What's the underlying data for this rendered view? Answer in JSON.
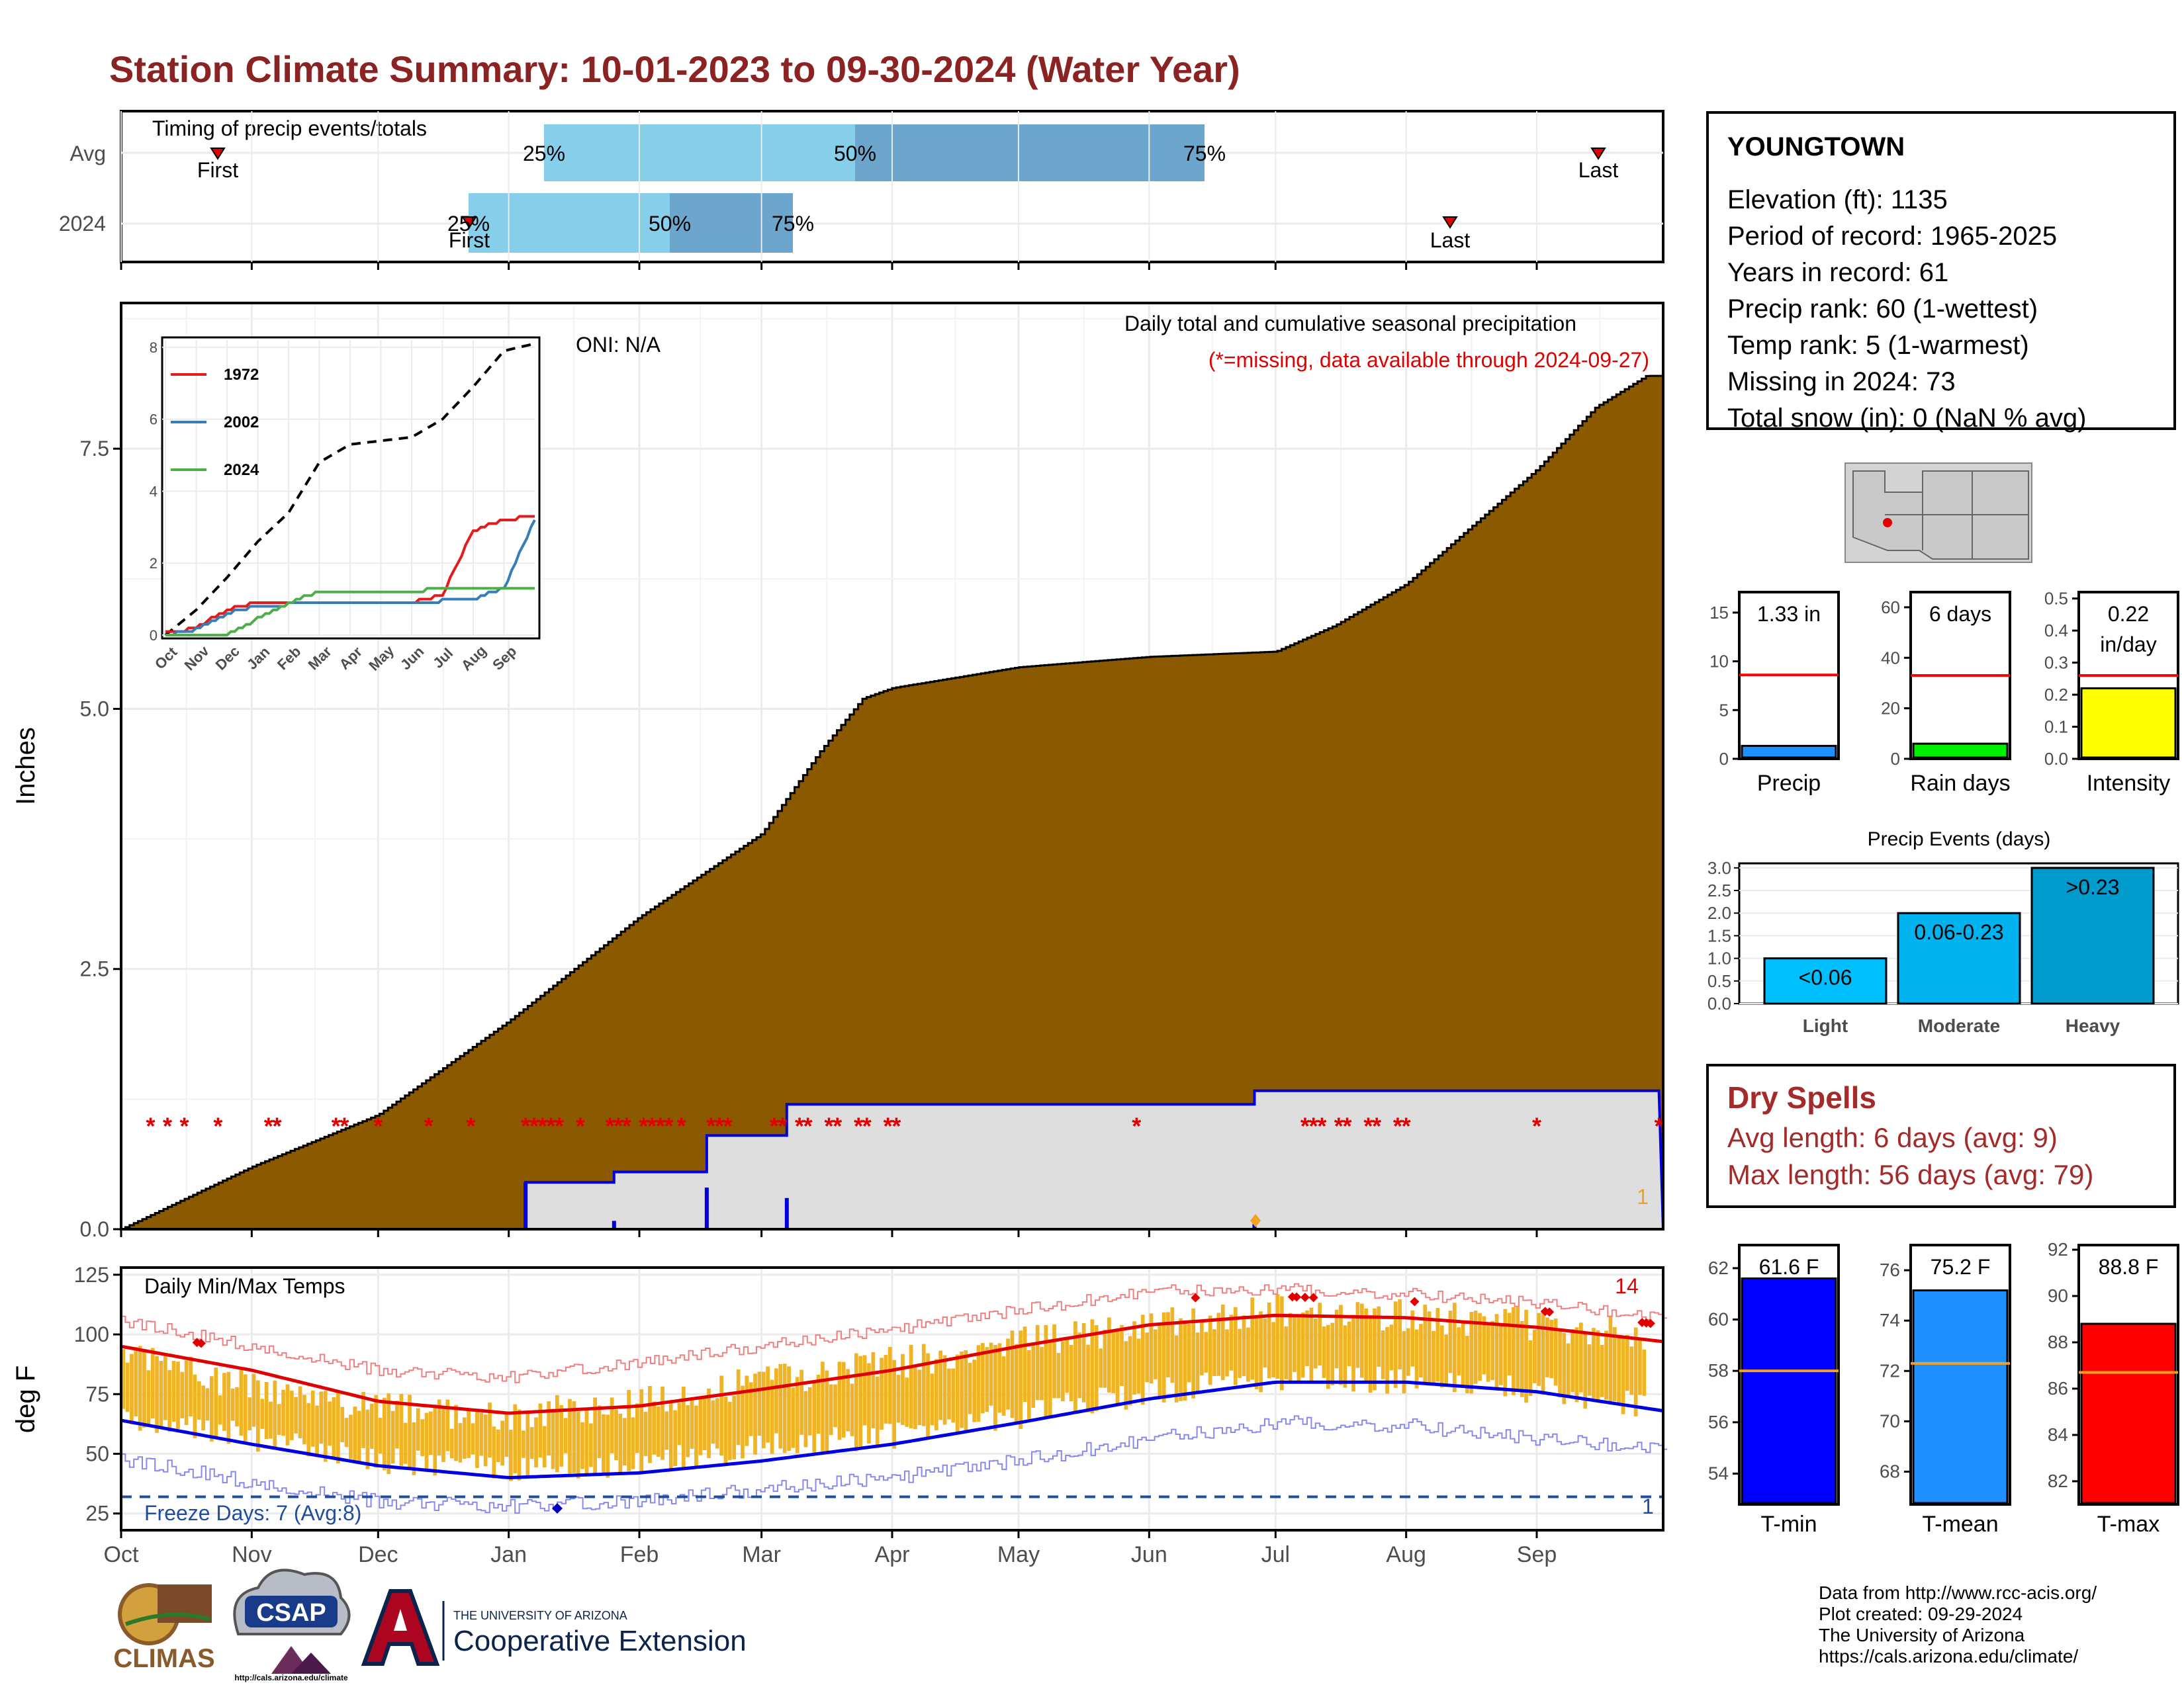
{
  "title": "Station Climate Summary: 10-01-2023 to 09-30-2024 (Water Year)",
  "timing": {
    "label": "Timing of precip events/totals",
    "rows": [
      "Avg",
      "2024"
    ],
    "avg": {
      "first_label": "First",
      "last_label": "Last",
      "p25": "25%",
      "p50": "50%",
      "p75": "75%"
    },
    "y2024": {
      "first_label": "First",
      "last_label": "Last",
      "p25": "25%",
      "p50": "50%",
      "p75": "75%"
    }
  },
  "station": {
    "name": "YOUNGTOWN",
    "lines": [
      "Elevation (ft): 1135",
      "Period of record: 1965-2025",
      "Years in record: 61",
      "Precip rank: 60 (1-wettest)",
      "Temp rank: 5 (1-warmest)",
      "Missing in 2024: 73",
      "Total snow (in): 0 (NaN % avg)"
    ]
  },
  "main_plot": {
    "ylabel": "Inches",
    "oni": "ONI: N/A",
    "caption": "Daily total and cumulative seasonal precipitation",
    "missing_note": "(*=missing, data available through 2024-09-27)",
    "corner_count": "1",
    "y_ticks": [
      "0.0",
      "2.5",
      "5.0",
      "7.5"
    ],
    "month_ticks": [
      "Oct",
      "Nov",
      "Dec",
      "Jan",
      "Feb",
      "Mar",
      "Apr",
      "May",
      "Jun",
      "Jul",
      "Aug",
      "Sep"
    ]
  },
  "inset": {
    "y_ticks": [
      "0",
      "2",
      "4",
      "6",
      "8"
    ],
    "x_ticks": [
      "Oct",
      "Nov",
      "Dec",
      "Jan",
      "Feb",
      "Mar",
      "Apr",
      "May",
      "Jun",
      "Jul",
      "Aug",
      "Sep"
    ],
    "legend": [
      "1972",
      "2002",
      "2024"
    ]
  },
  "temp_plot": {
    "ylabel": "deg F",
    "label": "Daily Min/Max Temps",
    "freeze": "Freeze Days: 7 (Avg:8)",
    "hot_count": "14",
    "cold_count": "1",
    "y_ticks": [
      "25",
      "50",
      "75",
      "100",
      "125"
    ]
  },
  "mini_bars": {
    "precip": {
      "label": "Precip",
      "value_text": "1.33 in",
      "ticks": [
        "0",
        "5",
        "10",
        "15"
      ]
    },
    "rain_days": {
      "label": "Rain days",
      "value_text": "6 days",
      "ticks": [
        "0",
        "20",
        "40",
        "60"
      ]
    },
    "intensity": {
      "label": "Intensity",
      "value_text_1": "0.22",
      "value_text_2": "in/day",
      "ticks": [
        "0.0",
        "0.1",
        "0.2",
        "0.3",
        "0.4",
        "0.5"
      ]
    }
  },
  "events": {
    "title": "Precip Events (days)",
    "ticks": [
      "0.0",
      "0.5",
      "1.0",
      "1.5",
      "2.0",
      "2.5",
      "3.0"
    ],
    "bars": [
      {
        "cat": "Light",
        "label": "<0.06",
        "value": 1
      },
      {
        "cat": "Moderate",
        "label": "0.06-0.23",
        "value": 2
      },
      {
        "cat": "Heavy",
        "label": ">0.23",
        "value": 3
      }
    ]
  },
  "dry_spells": {
    "title": "Dry Spells",
    "avg": "Avg length: 6 days (avg: 9)",
    "max": "Max length: 56 days (avg: 79)"
  },
  "temp_bars": {
    "tmin": {
      "label": "T-min",
      "value_text": "61.6 F",
      "ticks": [
        "54",
        "56",
        "58",
        "60",
        "62"
      ]
    },
    "tmean": {
      "label": "T-mean",
      "value_text": "75.2 F",
      "ticks": [
        "68",
        "70",
        "72",
        "74",
        "76"
      ]
    },
    "tmax": {
      "label": "T-max",
      "value_text": "88.8 F",
      "ticks": [
        "82",
        "84",
        "86",
        "88",
        "90",
        "92"
      ]
    }
  },
  "logos": {
    "climas": "CLIMAS",
    "csap": "CSAP",
    "csap_url": "http://cals.arizona.edu/climate",
    "ua_small": "THE UNIVERSITY OF ARIZONA",
    "ua_big": "Cooperative Extension"
  },
  "credits": [
    "Data from http://www.rcc-acis.org/",
    "Plot created: 09-29-2024",
    "The University of Arizona",
    "https://cals.arizona.edu/climate/"
  ],
  "chart_data": [
    {
      "type": "area",
      "title": "Daily total and cumulative seasonal precipitation",
      "ylabel": "Inches",
      "ylim": [
        0,
        8.9
      ],
      "x": [
        "2023-10-01",
        "2023-11-01",
        "2023-12-01",
        "2024-01-01",
        "2024-02-01",
        "2024-03-01",
        "2024-03-15",
        "2024-03-25",
        "2024-04-01",
        "2024-05-01",
        "2024-06-01",
        "2024-07-01",
        "2024-07-15",
        "2024-08-01",
        "2024-08-15",
        "2024-09-01",
        "2024-09-15",
        "2024-09-27"
      ],
      "series": [
        {
          "name": "Avg cumulative",
          "values": [
            0.0,
            0.6,
            1.1,
            2.0,
            3.0,
            3.8,
            4.6,
            5.1,
            5.2,
            5.4,
            5.5,
            5.55,
            5.8,
            6.2,
            6.7,
            7.3,
            7.9,
            8.2
          ]
        },
        {
          "values": [
            0.0,
            0.0,
            0.0,
            0.45,
            0.9,
            0.9,
            1.2,
            1.2,
            1.2,
            1.2,
            1.2,
            1.33,
            1.33,
            1.33,
            1.33,
            1.33,
            1.33,
            1.33
          ]
        }
      ]
    },
    {
      "type": "line",
      "x": [
        "Oct",
        "Nov",
        "Dec",
        "Jan",
        "Feb",
        "Mar",
        "Apr",
        "May",
        "Jun",
        "Jul",
        "Aug",
        "Sep",
        "end"
      ],
      "ylim": [
        0,
        8.2
      ],
      "series": [
        {
          "values": [
            0.0,
            0.7,
            1.6,
            2.6,
            3.4,
            4.8,
            5.3,
            5.4,
            5.5,
            6.0,
            6.9,
            7.9,
            8.1
          ]
        },
        {
          "name": "1972",
          "values": [
            0.05,
            0.2,
            0.7,
            0.9,
            0.9,
            0.9,
            0.9,
            0.9,
            0.9,
            1.1,
            2.9,
            3.2,
            3.3
          ]
        },
        {
          "name": "2002",
          "values": [
            0.0,
            0.15,
            0.6,
            0.8,
            0.85,
            0.85,
            0.85,
            0.85,
            0.85,
            0.95,
            1.0,
            1.3,
            3.2
          ]
        },
        {
          "name": "2024",
          "values": [
            0.0,
            0.0,
            0.0,
            0.45,
            0.9,
            1.2,
            1.2,
            1.2,
            1.2,
            1.33,
            1.33,
            1.33,
            1.33
          ]
        }
      ]
    },
    {
      "type": "line",
      "title": "Daily Min/Max Temps",
      "ylabel": "deg F",
      "ylim": [
        18,
        128
      ],
      "x": [
        "Oct",
        "Nov",
        "Dec",
        "Jan",
        "Feb",
        "Mar",
        "Apr",
        "May",
        "Jun",
        "Jul",
        "Aug",
        "Sep",
        "end"
      ],
      "series": [
        {
          "name": "Avg max",
          "values": [
            95,
            85,
            72,
            67,
            70,
            77,
            85,
            95,
            104,
            108,
            107,
            103,
            97
          ]
        },
        {
          "name": "Avg min",
          "values": [
            64,
            54,
            45,
            40,
            42,
            47,
            54,
            63,
            73,
            80,
            80,
            76,
            68
          ]
        },
        {
          "name": "Record high",
          "values": [
            106,
            95,
            85,
            82,
            88,
            95,
            102,
            110,
            118,
            119,
            117,
            113,
            107
          ]
        },
        {
          "name": "Record low",
          "values": [
            48,
            38,
            30,
            28,
            30,
            35,
            40,
            47,
            56,
            63,
            62,
            56,
            52
          ]
        },
        {
          "name": "Observed max",
          "values": [
            92,
            78,
            70,
            65,
            72,
            80,
            88,
            96,
            104,
            110,
            108,
            104,
            100
          ]
        },
        {
          "name": "Observed min",
          "values": [
            66,
            57,
            47,
            44,
            46,
            52,
            58,
            66,
            76,
            82,
            81,
            77,
            70
          ]
        }
      ],
      "freeze_line": 32
    },
    {
      "type": "bar",
      "categories": [
        "Precip",
        "Rain days",
        "Intensity"
      ],
      "series": [
        {
          "name": "2024",
          "values": [
            1.33,
            6,
            0.22
          ]
        },
        {
          "name": "Avg",
          "values": [
            8.6,
            33,
            0.26
          ]
        }
      ]
    },
    {
      "type": "bar",
      "title": "Precip Events (days)",
      "categories": [
        "Light",
        "Moderate",
        "Heavy"
      ],
      "values": [
        1,
        2,
        3
      ],
      "ylim": [
        0,
        3.1
      ]
    },
    {
      "type": "bar",
      "categories": [
        "T-min",
        "T-mean",
        "T-max"
      ],
      "series": [
        {
          "name": "2024",
          "values": [
            61.6,
            75.2,
            88.8
          ]
        },
        {
          "name": "Avg",
          "values": [
            58.0,
            72.3,
            86.7
          ]
        }
      ]
    }
  ]
}
